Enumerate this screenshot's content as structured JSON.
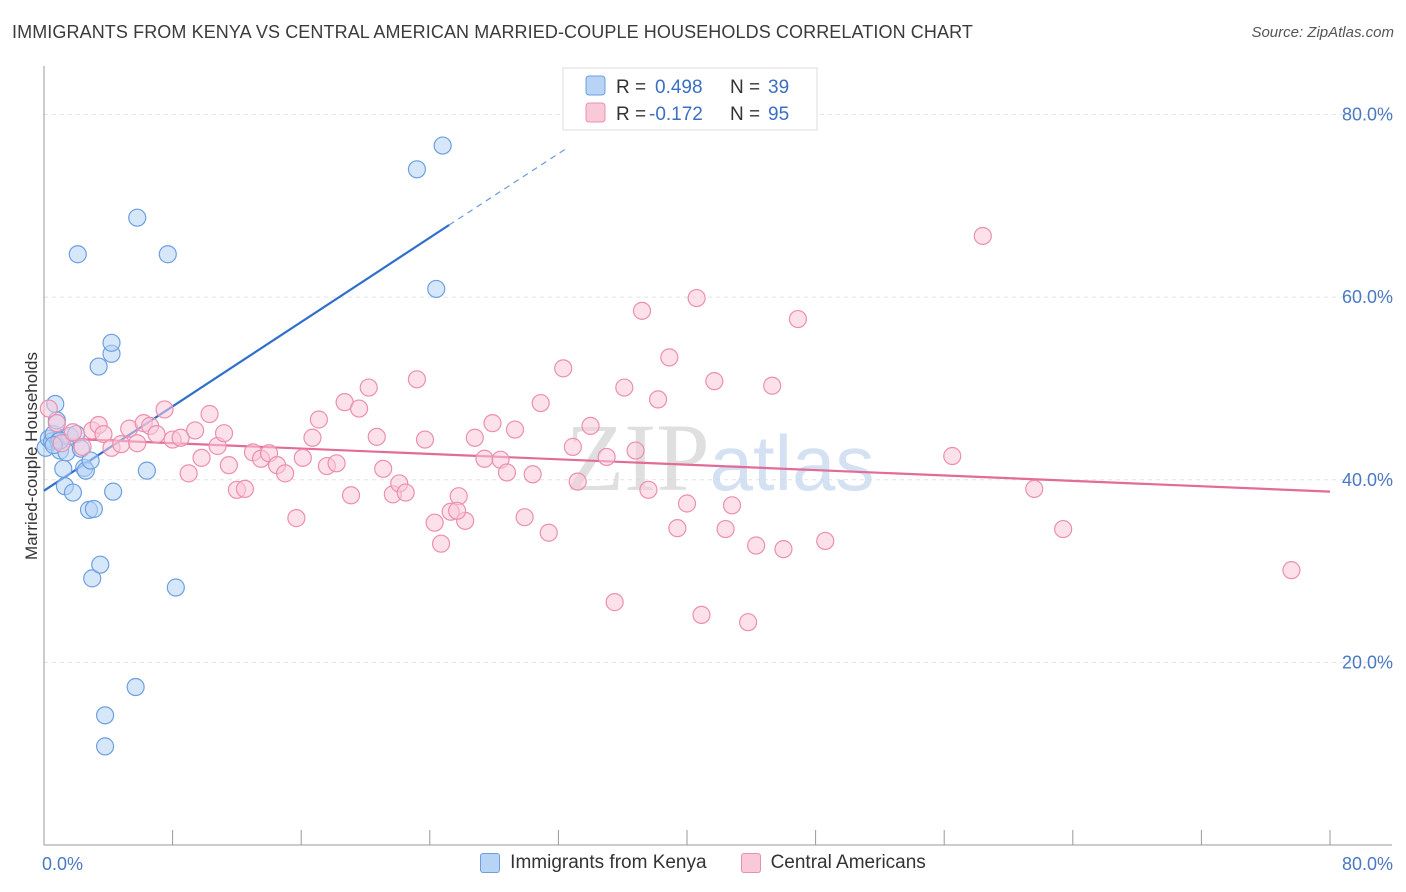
{
  "title": "IMMIGRANTS FROM KENYA VS CENTRAL AMERICAN MARRIED-COUPLE HOUSEHOLDS CORRELATION CHART",
  "source": "Source: ZipAtlas.com",
  "watermark": "ZIPatlas",
  "colors": {
    "blue_fill": "#b7d3f5",
    "blue_stroke": "#6d9fe0",
    "blue_line": "#2e6fcc",
    "pink_fill": "#f9c9d8",
    "pink_stroke": "#ec8fae",
    "pink_line": "#e26b98",
    "axis_text": "#4a78c2",
    "grid": "#e3e3e3"
  },
  "legend": {
    "rows": [
      {
        "r_label": "R =",
        "r_value": "0.498",
        "n_label": "N =",
        "n_value": "39"
      },
      {
        "r_label": "R =",
        "r_value": "-0.172",
        "n_label": "N =",
        "n_value": "95"
      }
    ]
  },
  "bottom_legend": [
    "Immigrants from Kenya",
    "Central Americans"
  ],
  "chart_data": {
    "type": "scatter",
    "ylabel": "Married-couple Households",
    "xlim": [
      0,
      80
    ],
    "ylim": [
      0,
      84
    ],
    "x_tick_labels": [
      "0.0%",
      "80.0%"
    ],
    "y_tick_labels": [
      "20.0%",
      "40.0%",
      "60.0%",
      "80.0%"
    ],
    "y_ticks": [
      20,
      40,
      60,
      80
    ],
    "x_ticks_minor": [
      0,
      8,
      16,
      24,
      32,
      40,
      48,
      56,
      64,
      72,
      80
    ],
    "series": [
      {
        "name": "Immigrants from Kenya",
        "color": "blue",
        "points": [
          [
            0.1,
            43.5
          ],
          [
            0.3,
            44.5
          ],
          [
            0.5,
            44.2
          ],
          [
            0.6,
            45.0
          ],
          [
            0.7,
            48.3
          ],
          [
            0.9,
            44.2
          ],
          [
            1.0,
            43.2
          ],
          [
            1.2,
            41.2
          ],
          [
            1.3,
            39.3
          ],
          [
            1.4,
            43.0
          ],
          [
            1.6,
            44.8
          ],
          [
            1.8,
            38.6
          ],
          [
            2.0,
            45.0
          ],
          [
            2.3,
            43.4
          ],
          [
            2.5,
            41.3
          ],
          [
            2.6,
            41.0
          ],
          [
            2.8,
            36.7
          ],
          [
            2.9,
            42.1
          ],
          [
            3.0,
            29.2
          ],
          [
            3.1,
            36.8
          ],
          [
            3.4,
            52.4
          ],
          [
            3.5,
            30.7
          ],
          [
            3.8,
            14.2
          ],
          [
            3.8,
            10.8
          ],
          [
            4.2,
            53.8
          ],
          [
            4.2,
            55.0
          ],
          [
            4.3,
            38.7
          ],
          [
            5.7,
            17.3
          ],
          [
            5.8,
            68.7
          ],
          [
            6.4,
            41.0
          ],
          [
            7.7,
            64.7
          ],
          [
            8.2,
            28.2
          ],
          [
            2.1,
            64.7
          ],
          [
            23.2,
            74.0
          ],
          [
            24.4,
            60.9
          ],
          [
            24.8,
            76.6
          ],
          [
            1.0,
            44.3
          ],
          [
            0.8,
            46.5
          ],
          [
            0.6,
            43.8
          ]
        ]
      },
      {
        "name": "Central Americans",
        "color": "pink",
        "points": [
          [
            0.3,
            47.8
          ],
          [
            0.8,
            46.2
          ],
          [
            1.1,
            44.0
          ],
          [
            1.8,
            45.2
          ],
          [
            2.4,
            43.6
          ],
          [
            3.0,
            45.4
          ],
          [
            3.4,
            46.0
          ],
          [
            3.7,
            45.0
          ],
          [
            4.2,
            43.5
          ],
          [
            4.8,
            43.9
          ],
          [
            5.3,
            45.6
          ],
          [
            5.8,
            44.0
          ],
          [
            6.2,
            46.2
          ],
          [
            6.6,
            45.9
          ],
          [
            7.0,
            45.0
          ],
          [
            7.5,
            47.7
          ],
          [
            8.0,
            44.4
          ],
          [
            8.5,
            44.6
          ],
          [
            9.0,
            40.7
          ],
          [
            9.4,
            45.4
          ],
          [
            9.8,
            42.4
          ],
          [
            10.3,
            47.2
          ],
          [
            10.8,
            43.7
          ],
          [
            11.2,
            45.1
          ],
          [
            11.5,
            41.6
          ],
          [
            12.0,
            38.9
          ],
          [
            12.5,
            39.0
          ],
          [
            13.0,
            43.0
          ],
          [
            13.5,
            42.3
          ],
          [
            14.0,
            42.9
          ],
          [
            14.5,
            41.6
          ],
          [
            15.0,
            40.7
          ],
          [
            15.7,
            35.8
          ],
          [
            16.1,
            42.4
          ],
          [
            16.7,
            44.6
          ],
          [
            17.1,
            46.6
          ],
          [
            17.6,
            41.5
          ],
          [
            18.2,
            41.8
          ],
          [
            18.7,
            48.5
          ],
          [
            19.1,
            38.3
          ],
          [
            19.6,
            47.8
          ],
          [
            20.2,
            50.1
          ],
          [
            20.7,
            44.7
          ],
          [
            21.1,
            41.2
          ],
          [
            21.7,
            38.4
          ],
          [
            22.1,
            39.6
          ],
          [
            22.5,
            38.6
          ],
          [
            23.2,
            51.0
          ],
          [
            23.7,
            44.4
          ],
          [
            24.3,
            35.3
          ],
          [
            24.7,
            33.0
          ],
          [
            25.3,
            36.5
          ],
          [
            25.8,
            38.2
          ],
          [
            26.2,
            35.5
          ],
          [
            26.8,
            44.6
          ],
          [
            27.4,
            42.3
          ],
          [
            27.9,
            46.2
          ],
          [
            28.4,
            42.2
          ],
          [
            28.8,
            40.8
          ],
          [
            29.3,
            45.5
          ],
          [
            29.9,
            35.9
          ],
          [
            30.4,
            40.6
          ],
          [
            30.9,
            48.4
          ],
          [
            31.4,
            34.2
          ],
          [
            32.3,
            52.2
          ],
          [
            32.9,
            43.6
          ],
          [
            33.2,
            39.8
          ],
          [
            34.0,
            45.9
          ],
          [
            35.0,
            42.5
          ],
          [
            35.5,
            26.6
          ],
          [
            36.1,
            50.1
          ],
          [
            36.8,
            43.2
          ],
          [
            37.2,
            58.5
          ],
          [
            37.6,
            38.9
          ],
          [
            38.2,
            48.8
          ],
          [
            38.9,
            53.4
          ],
          [
            39.4,
            34.7
          ],
          [
            40.0,
            37.4
          ],
          [
            40.6,
            59.9
          ],
          [
            40.9,
            25.2
          ],
          [
            41.7,
            50.8
          ],
          [
            42.4,
            34.6
          ],
          [
            42.8,
            37.2
          ],
          [
            43.8,
            24.4
          ],
          [
            44.3,
            32.8
          ],
          [
            45.3,
            50.3
          ],
          [
            46.0,
            32.4
          ],
          [
            46.9,
            57.6
          ],
          [
            48.6,
            33.3
          ],
          [
            56.5,
            42.6
          ],
          [
            58.4,
            66.7
          ],
          [
            61.6,
            39.0
          ],
          [
            63.4,
            34.6
          ],
          [
            77.6,
            30.1
          ],
          [
            25.7,
            36.6
          ]
        ]
      }
    ],
    "trend_lines": [
      {
        "series": "Immigrants from Kenya",
        "solid": [
          [
            0,
            38.8
          ],
          [
            25.2,
            67.9
          ]
        ],
        "dashed": [
          [
            25.2,
            67.9
          ],
          [
            32.6,
            76.4
          ]
        ]
      },
      {
        "series": "Central Americans",
        "solid": [
          [
            0,
            44.6
          ],
          [
            80,
            38.7
          ]
        ]
      }
    ]
  }
}
